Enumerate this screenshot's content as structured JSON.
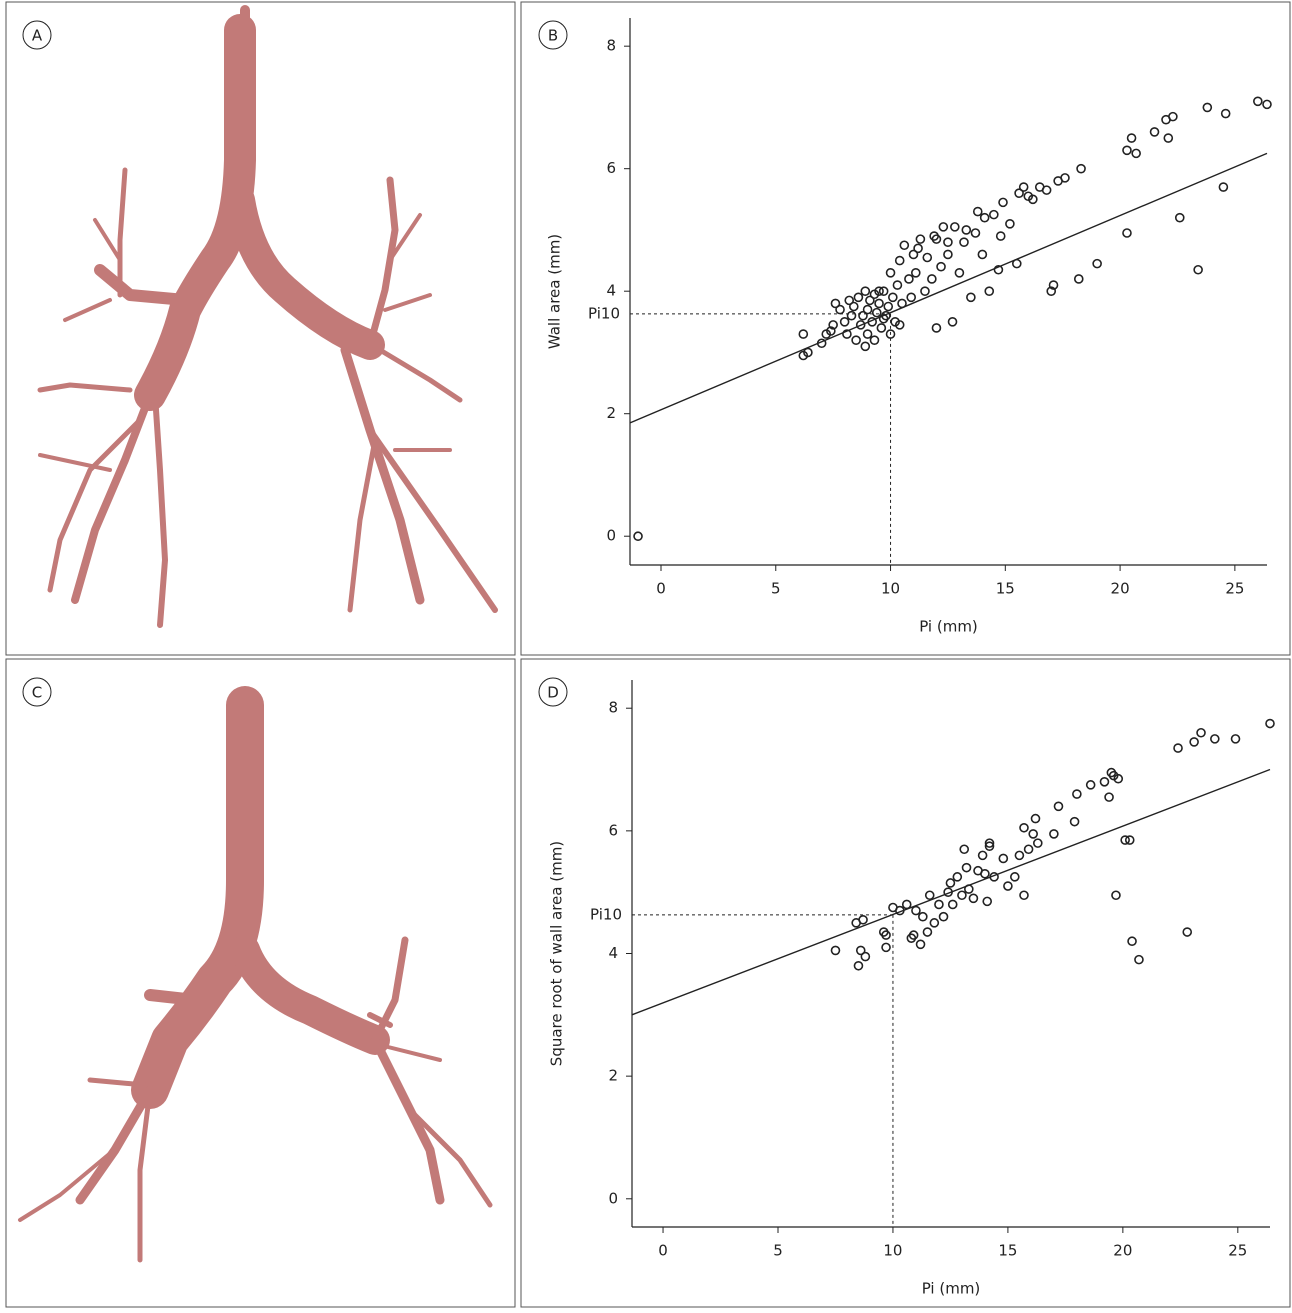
{
  "panels": [
    "A",
    "B",
    "C",
    "D"
  ],
  "chart_data": [
    {
      "type": "scatter",
      "color": "#222222",
      "x_label": "Pi (mm)",
      "y_label": "Wall area (mm)",
      "xlim": [
        -1.35,
        26.4
      ],
      "ylim": [
        -0.47,
        8.46
      ],
      "xticks": [
        0,
        5,
        10,
        15,
        20,
        25
      ],
      "yticks": [
        0,
        2,
        4,
        6,
        8
      ],
      "x": [
        -1,
        6.2,
        6.4,
        6.2,
        7,
        7.2,
        7.4,
        7.5,
        7.6,
        7.8,
        8,
        8.1,
        8.3,
        8.4,
        8.5,
        8.6,
        8.7,
        8.8,
        8.9,
        9,
        9,
        9.1,
        9.2,
        9.3,
        9.3,
        9.4,
        9.5,
        9.6,
        9.7,
        9.8,
        9.9,
        10,
        10,
        10.1,
        10.2,
        10.3,
        10.4,
        10.5,
        10.6,
        10.8,
        10.9,
        11,
        11.1,
        11.3,
        11.5,
        11.6,
        11.8,
        12,
        12,
        12.2,
        12.3,
        12.5,
        12.7,
        12.8,
        13,
        13.2,
        13.5,
        13.7,
        13.8,
        14,
        14.1,
        14.3,
        14.5,
        14.7,
        14.9,
        15.2,
        15.5,
        15.6,
        15.8,
        16.2,
        16.5,
        16.8,
        17,
        17.1,
        17.3,
        17.6,
        18.2,
        18.3,
        19,
        20.3,
        20.3,
        20.5,
        20.7,
        21.5,
        22.1,
        22.3,
        22.6,
        23.4,
        23.8,
        24.5,
        24.6,
        26,
        26.4,
        22,
        11.9,
        12.5,
        9.5,
        8.9,
        10.4,
        11.2,
        13.3,
        14.8,
        16,
        8.2,
        9.7
      ],
      "values": [
        0,
        2.95,
        3.0,
        3.3,
        3.15,
        3.3,
        3.35,
        3.45,
        3.8,
        3.7,
        3.5,
        3.3,
        3.6,
        3.75,
        3.2,
        3.9,
        3.45,
        3.6,
        4.0,
        3.3,
        3.7,
        3.85,
        3.5,
        3.95,
        3.2,
        3.65,
        3.8,
        3.4,
        4.0,
        3.6,
        3.75,
        3.3,
        4.3,
        3.9,
        3.5,
        4.1,
        4.5,
        3.8,
        4.75,
        4.2,
        3.9,
        4.6,
        4.3,
        4.85,
        4.0,
        4.55,
        4.2,
        3.4,
        4.85,
        4.4,
        5.05,
        4.6,
        3.5,
        5.05,
        4.3,
        4.8,
        3.9,
        4.95,
        5.3,
        4.6,
        5.2,
        4.0,
        5.25,
        4.35,
        5.45,
        5.1,
        4.45,
        5.6,
        5.7,
        5.5,
        5.7,
        5.65,
        4.0,
        4.1,
        5.8,
        5.85,
        4.2,
        6.0,
        4.45,
        4.95,
        6.3,
        6.5,
        6.25,
        6.6,
        6.5,
        6.85,
        5.2,
        4.35,
        7.0,
        5.7,
        6.9,
        7.1,
        7.05,
        6.8,
        4.9,
        4.8,
        4.0,
        3.1,
        3.45,
        4.7,
        5.0,
        4.9,
        5.55,
        3.85,
        3.55
      ],
      "fit": {
        "x": [
          -1.35,
          26.4
        ],
        "values": [
          1.85,
          6.25
        ]
      },
      "reference": {
        "label": "Pi10",
        "x": 10,
        "y": 3.63
      }
    },
    {
      "type": "scatter",
      "color": "#222222",
      "x_label": "Pi (mm)",
      "y_label": "Square root of wall area (mm)",
      "xlim": [
        -1.35,
        26.4
      ],
      "ylim": [
        -0.46,
        8.46
      ],
      "xticks": [
        0,
        5,
        10,
        15,
        20,
        25
      ],
      "yticks": [
        0,
        2,
        4,
        6,
        8
      ],
      "x": [
        7.5,
        8.4,
        8.5,
        8.6,
        8.7,
        8.8,
        9.6,
        9.7,
        9.7,
        10,
        10.3,
        10.6,
        10.8,
        10.9,
        11,
        11.2,
        11.3,
        11.5,
        11.6,
        11.8,
        12,
        12.2,
        12.4,
        12.6,
        12.8,
        13,
        13.1,
        13.2,
        13.3,
        13.5,
        13.7,
        13.9,
        14,
        14.1,
        14.2,
        14.4,
        14.8,
        15,
        15.3,
        15.5,
        15.7,
        15.7,
        15.9,
        16.1,
        16.3,
        16.2,
        17,
        17.2,
        17.9,
        18,
        18.6,
        19.2,
        19.4,
        19.6,
        19.7,
        19.8,
        20.1,
        20.3,
        20.4,
        20.7,
        22.4,
        22.8,
        23.1,
        23.4,
        24,
        24.9,
        26.4,
        19.5,
        14.2,
        12.5
      ],
      "values": [
        4.05,
        4.5,
        3.8,
        4.05,
        4.55,
        3.95,
        4.35,
        4.1,
        4.3,
        4.75,
        4.7,
        4.8,
        4.25,
        4.3,
        4.7,
        4.15,
        4.6,
        4.35,
        4.95,
        4.5,
        4.8,
        4.6,
        5.0,
        4.8,
        5.25,
        4.95,
        5.7,
        5.4,
        5.05,
        4.9,
        5.35,
        5.6,
        5.3,
        4.85,
        5.8,
        5.25,
        5.55,
        5.1,
        5.25,
        5.6,
        6.05,
        4.95,
        5.7,
        5.95,
        5.8,
        6.2,
        5.95,
        6.4,
        6.15,
        6.6,
        6.75,
        6.8,
        6.55,
        6.9,
        4.95,
        6.85,
        5.85,
        5.85,
        4.2,
        3.9,
        7.35,
        4.35,
        7.45,
        7.6,
        7.5,
        7.5,
        7.75,
        6.95,
        5.75,
        5.15
      ],
      "fit": {
        "x": [
          -1.35,
          26.4
        ],
        "values": [
          3.0,
          7.0
        ]
      },
      "reference": {
        "label": "Pi10",
        "x": 10,
        "y": 4.63
      }
    }
  ]
}
